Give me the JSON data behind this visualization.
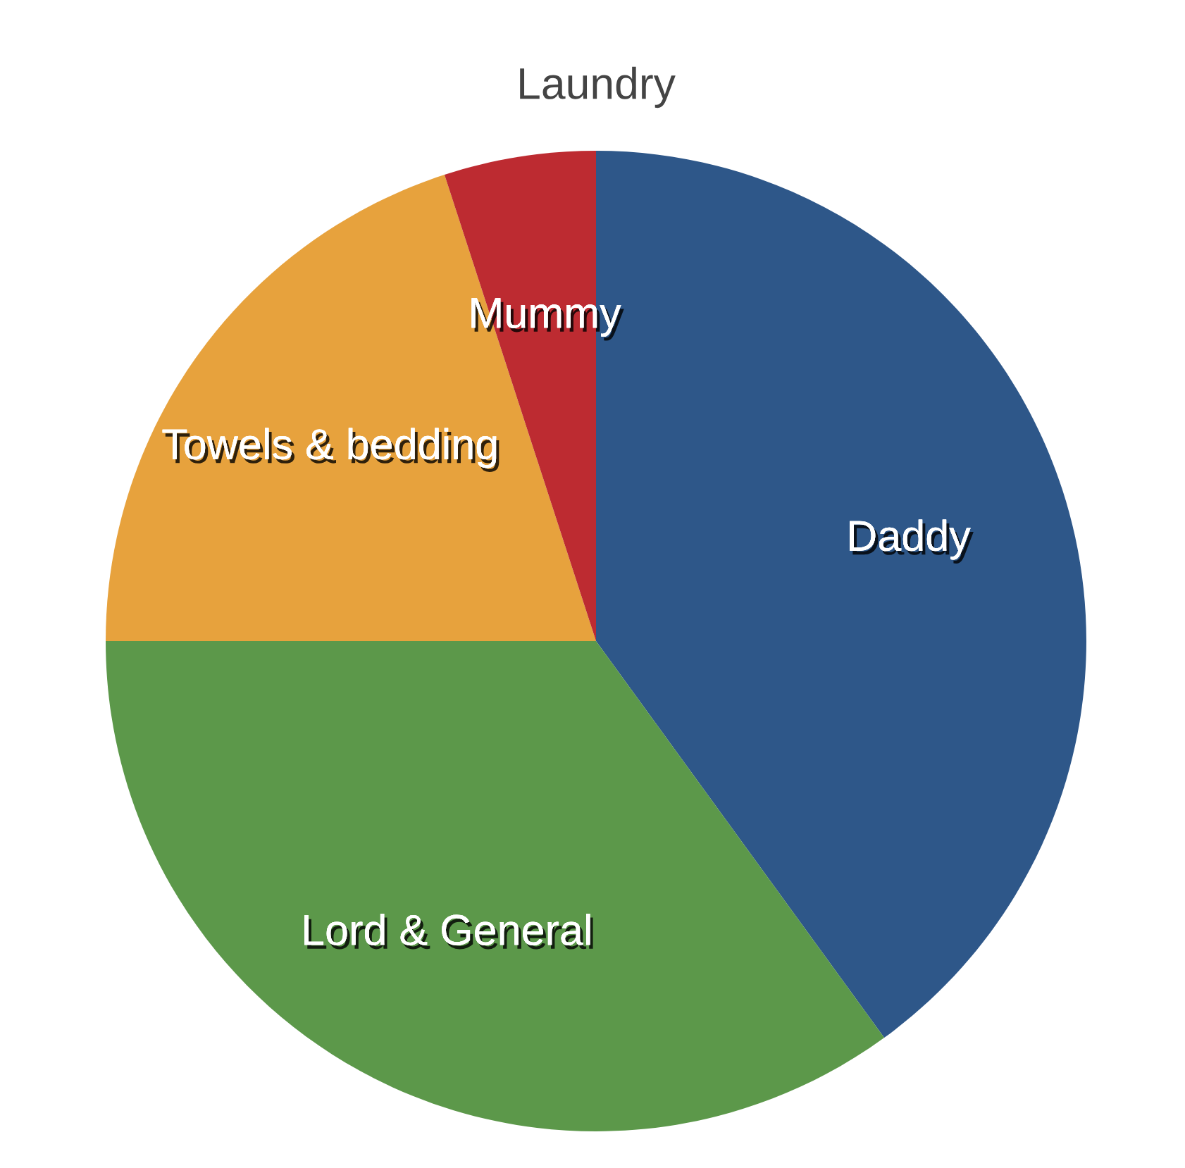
{
  "chart_data": {
    "type": "pie",
    "title": "Laundry",
    "categories": [
      "Daddy",
      "Lord & General",
      "Towels & bedding",
      "Mummy"
    ],
    "values": [
      40,
      35,
      20,
      5
    ],
    "colors": [
      "#2e5789",
      "#5c984a",
      "#e7a23d",
      "#bd2b31"
    ]
  }
}
